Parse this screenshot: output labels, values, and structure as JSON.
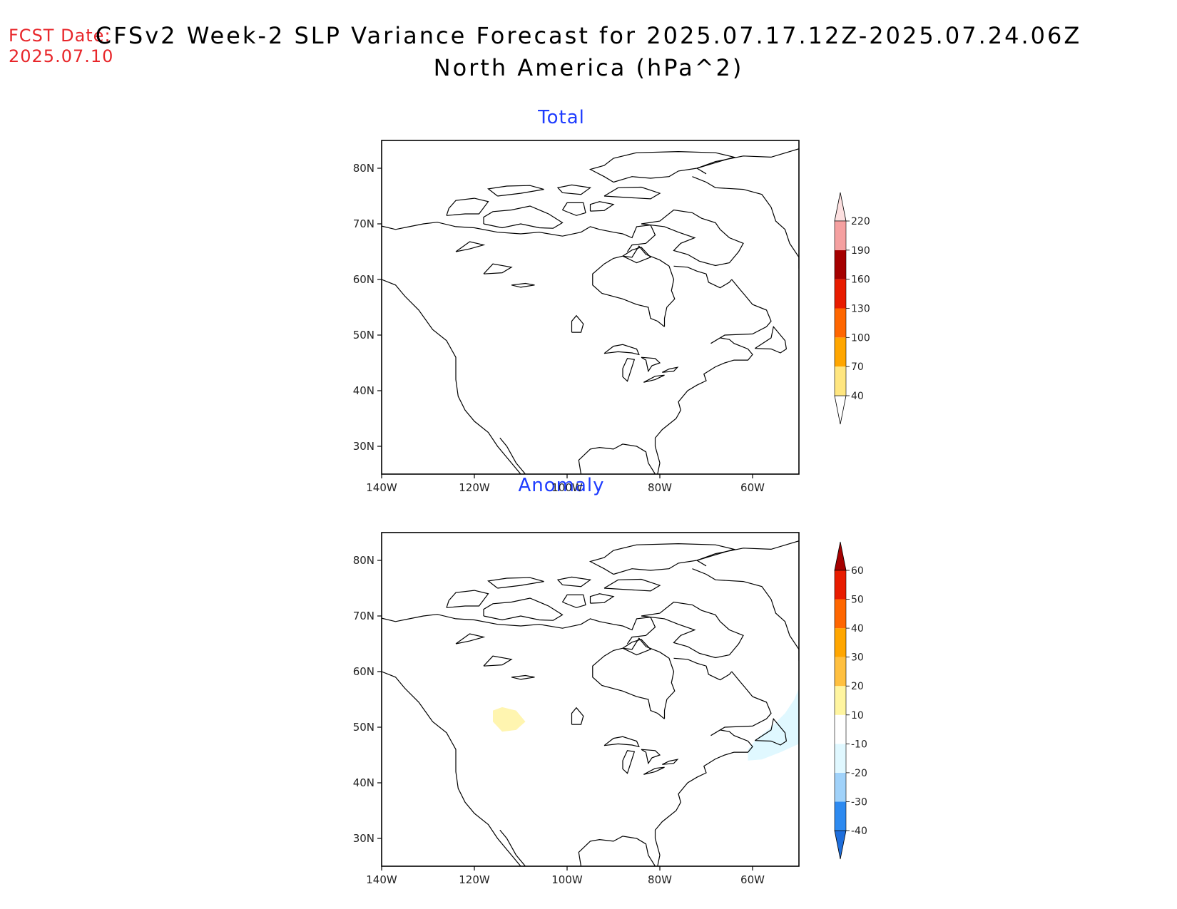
{
  "header": {
    "fcst_label": "FCST Date:",
    "fcst_date": "2025.07.10",
    "title_line1": "CFSv2 Week-2 SLP Variance Forecast for 2025.07.17.12Z-2025.07.24.06Z",
    "title_line2": "North America (hPa^2)"
  },
  "axes": {
    "lat_labels": [
      "80N",
      "70N",
      "60N",
      "50N",
      "40N",
      "30N"
    ],
    "lat_values": [
      80,
      70,
      60,
      50,
      40,
      30
    ],
    "lon_labels": [
      "140W",
      "120W",
      "100W",
      "80W",
      "60W"
    ],
    "lon_values": [
      -140,
      -120,
      -100,
      -80,
      -60
    ],
    "lat_range": [
      25,
      85
    ],
    "lon_range": [
      -140,
      -50
    ]
  },
  "panels": [
    {
      "id": "total",
      "title": "Total",
      "colorbar": {
        "labels": [
          "40",
          "70",
          "100",
          "130",
          "160",
          "190",
          "220"
        ],
        "colors": [
          "#ffffff",
          "#ffe680",
          "#ffa600",
          "#ff6600",
          "#e81c00",
          "#a50000",
          "#f5a0a0",
          "#fde0e0"
        ],
        "triangle_top": "#fde0e0",
        "triangle_bottom": "#ffffff"
      },
      "shading": []
    },
    {
      "id": "anomaly",
      "title": "Anomaly",
      "colorbar": {
        "labels": [
          "-40",
          "-30",
          "-20",
          "-10",
          "10",
          "20",
          "30",
          "40",
          "50",
          "60"
        ],
        "colors": [
          "#1e6edc",
          "#2d8af0",
          "#a0d2fa",
          "#e0f8ff",
          "#ffffff",
          "#fff5a0",
          "#ffc040",
          "#ffa600",
          "#ff6600",
          "#e81c00",
          "#a50000"
        ],
        "triangle_top": "#a50000",
        "triangle_bottom": "#1e6edc"
      },
      "shading": [
        {
          "label": "10 to 20",
          "color": "#fff5b0",
          "region": "southern Alberta"
        },
        {
          "label": "-20 to -10",
          "color": "#e0f8ff",
          "region": "Atlantic Canada"
        }
      ]
    }
  ]
}
